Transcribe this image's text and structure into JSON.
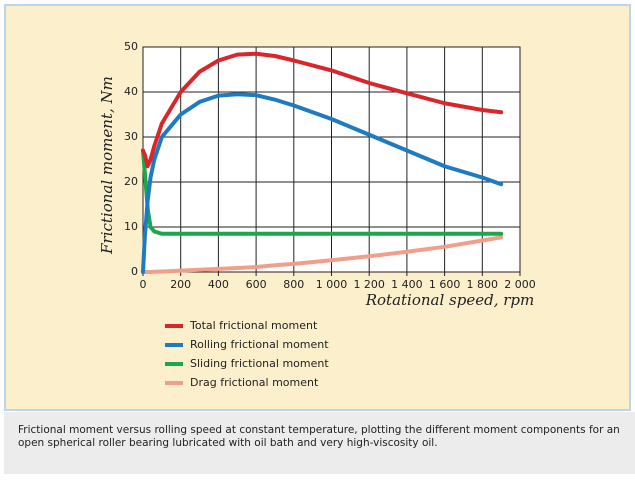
{
  "chart_data": {
    "type": "line",
    "x_label": "Rotational speed, rpm",
    "y_label": "Frictional moment, Nm",
    "x": [
      0,
      10,
      25,
      40,
      60,
      100,
      200,
      300,
      400,
      500,
      600,
      700,
      800,
      1000,
      1200,
      1400,
      1600,
      1800,
      1900
    ],
    "series": [
      {
        "name": "Total frictional moment",
        "color": "#d9262b",
        "values": [
          27,
          26,
          23.5,
          25,
          28,
          33,
          40,
          44.5,
          47,
          48.3,
          48.5,
          48,
          47,
          44.8,
          42,
          39.7,
          37.5,
          36,
          35.5
        ]
      },
      {
        "name": "Rolling frictional moment",
        "color": "#1f7bc1",
        "values": [
          0,
          8,
          16,
          21,
          25,
          30,
          35,
          37.8,
          39.2,
          39.5,
          39.3,
          38.3,
          37,
          34,
          30.5,
          27,
          23.5,
          21,
          19.5
        ]
      },
      {
        "name": "Sliding frictional moment",
        "color": "#1aa84b",
        "values": [
          27,
          22,
          14,
          10,
          9,
          8.5,
          8.5,
          8.5,
          8.5,
          8.5,
          8.5,
          8.5,
          8.5,
          8.5,
          8.5,
          8.5,
          8.5,
          8.5,
          8.5
        ]
      },
      {
        "name": "Drag frictional moment",
        "color": "#f0a08a",
        "values": [
          0,
          0,
          0,
          0,
          0.05,
          0.1,
          0.3,
          0.5,
          0.7,
          0.9,
          1.1,
          1.5,
          1.8,
          2.6,
          3.5,
          4.5,
          5.6,
          7,
          7.7
        ]
      }
    ],
    "xlim": [
      0,
      2000
    ],
    "ylim": [
      0,
      50
    ],
    "xticks": [
      0,
      200,
      400,
      600,
      800,
      {
        "value": 1000,
        "label": "1 000"
      },
      {
        "value": 1200,
        "label": "1 200"
      },
      {
        "value": 1400,
        "label": "1 400"
      },
      {
        "value": 1600,
        "label": "1 600"
      },
      {
        "value": 1800,
        "label": "1 800"
      },
      {
        "value": 2000,
        "label": "2 000"
      }
    ],
    "yticks": [
      0,
      10,
      20,
      30,
      40,
      50
    ],
    "grid": true
  },
  "caption": "Frictional moment versus rolling speed at constant temperature, plotting the different moment components for an open spherical roller bearing lubricated with oil bath and very high-viscosity oil."
}
